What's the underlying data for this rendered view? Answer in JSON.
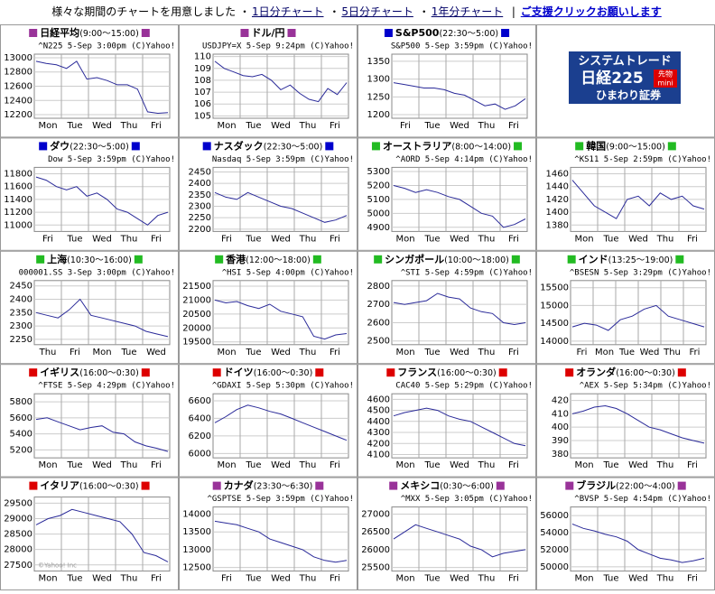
{
  "header": {
    "intro": "様々な期間のチャートを用意しました",
    "links": [
      "1日分チャート",
      "5日分チャート",
      "1年分チャート"
    ],
    "bullet": "・",
    "separator": "|",
    "support": "ご支援クリックお願いします"
  },
  "ad": {
    "title": "システムトレード",
    "product": "日経225",
    "badge": "先物",
    "badge2": "mini",
    "broker": "ひまわり証券"
  },
  "charts": [
    {
      "title": "日経平均",
      "hours": "(9:00〜15:00)",
      "color": "#993399",
      "caption": "^N225 5-Sep 3:00pm (C)Yahoo!",
      "ylim": [
        12150,
        13050
      ],
      "yticks": [
        12200,
        12400,
        12600,
        12800,
        13000
      ],
      "days": [
        "Mon",
        "Tue",
        "Wed",
        "Thu",
        "Fri"
      ],
      "values": [
        12950,
        12920,
        12900,
        12850,
        12950,
        12700,
        12720,
        12680,
        12620,
        12620,
        12560,
        12240,
        12220,
        12230
      ]
    },
    {
      "title": "ドル/円",
      "color": "#993399",
      "caption": "USDJPY=X 5-Sep 9:24pm (C)Yahoo!",
      "ylim": [
        104.8,
        110.2
      ],
      "yticks": [
        105,
        106,
        107,
        108,
        109,
        110
      ],
      "days": [
        "Mon",
        "Tue",
        "Wed",
        "Thu",
        "Fri"
      ],
      "values": [
        109.6,
        109,
        108.7,
        108.4,
        108.3,
        108.5,
        108,
        107.2,
        107.6,
        106.9,
        106.4,
        106.2,
        107.3,
        106.8,
        107.8
      ]
    },
    {
      "title": "S&P500",
      "hours": "(22:30〜5:00)",
      "color": "#0000cc",
      "caption": "S&P500 5-Sep 3:59pm (C)Yahoo!",
      "ylim": [
        1190,
        1370
      ],
      "yticks": [
        1200,
        1250,
        1300,
        1350
      ],
      "days": [
        "Fri",
        "Tue",
        "Wed",
        "Thu",
        "Fri"
      ],
      "values": [
        1290,
        1285,
        1280,
        1275,
        1275,
        1270,
        1260,
        1255,
        1240,
        1225,
        1230,
        1215,
        1225,
        1245
      ]
    },
    {
      "title": "ダウ",
      "hours": "(22:30〜5:00)",
      "color": "#0000cc",
      "caption": "Dow 5-Sep 3:59pm (C)Yahoo!",
      "ylim": [
        10900,
        11900
      ],
      "yticks": [
        11000,
        11200,
        11400,
        11600,
        11800
      ],
      "days": [
        "Fri",
        "Tue",
        "Wed",
        "Thu",
        "Fri"
      ],
      "values": [
        11750,
        11700,
        11600,
        11550,
        11600,
        11450,
        11500,
        11400,
        11250,
        11200,
        11100,
        11000,
        11150,
        11200
      ]
    },
    {
      "title": "ナスダック",
      "hours": "(22:30〜5:00)",
      "color": "#0000cc",
      "caption": "Nasdaq 5-Sep 3:59pm (C)Yahoo!",
      "ylim": [
        2190,
        2470
      ],
      "yticks": [
        2200,
        2250,
        2300,
        2350,
        2400,
        2450
      ],
      "days": [
        "Fri",
        "Tue",
        "Wed",
        "Thu",
        "Fri"
      ],
      "values": [
        2360,
        2340,
        2330,
        2360,
        2340,
        2320,
        2300,
        2290,
        2270,
        2250,
        2230,
        2240,
        2260
      ]
    },
    {
      "title": "オーストラリア",
      "hours": "(8:00〜14:00)",
      "color": "#22bb22",
      "caption": "^AORD 5-Sep 4:14pm (C)Yahoo!",
      "ylim": [
        4870,
        5330
      ],
      "yticks": [
        4900,
        5000,
        5100,
        5200,
        5300
      ],
      "days": [
        "Mon",
        "Tue",
        "Wed",
        "Thu",
        "Fri"
      ],
      "values": [
        5200,
        5180,
        5150,
        5170,
        5150,
        5120,
        5100,
        5050,
        5000,
        4980,
        4900,
        4920,
        4960
      ]
    },
    {
      "title": "韓国",
      "hours": "(9:00〜15:00)",
      "color": "#22bb22",
      "caption": "^KS11 5-Sep 2:59pm (C)Yahoo!",
      "ylim": [
        1370,
        1470
      ],
      "yticks": [
        1380,
        1400,
        1420,
        1440,
        1460
      ],
      "days": [
        "Mon",
        "Tue",
        "Wed",
        "Thu",
        "Fri"
      ],
      "values": [
        1450,
        1430,
        1410,
        1400,
        1390,
        1420,
        1425,
        1410,
        1430,
        1420,
        1425,
        1410,
        1405
      ]
    },
    {
      "title": "上海",
      "hours": "(10:30〜16:00)",
      "color": "#22bb22",
      "caption": "000001.SS 3-Sep 3:00pm (C)Yahoo!",
      "ylim": [
        2230,
        2470
      ],
      "yticks": [
        2250,
        2300,
        2350,
        2400,
        2450
      ],
      "days": [
        "Thu",
        "Fri",
        "Mon",
        "Tue",
        "Wed"
      ],
      "values": [
        2350,
        2340,
        2330,
        2360,
        2400,
        2340,
        2330,
        2320,
        2310,
        2300,
        2280,
        2270,
        2260
      ]
    },
    {
      "title": "香港",
      "hours": "(12:00〜18:00)",
      "color": "#22bb22",
      "caption": "^HSI 5-Sep 4:00pm (C)Yahoo!",
      "ylim": [
        19400,
        21700
      ],
      "yticks": [
        19500,
        20000,
        20500,
        21000,
        21500
      ],
      "days": [
        "Mon",
        "Tue",
        "Wed",
        "Thu",
        "Fri"
      ],
      "values": [
        21000,
        20900,
        20950,
        20800,
        20700,
        20850,
        20600,
        20500,
        20400,
        19700,
        19600,
        19750,
        19800
      ]
    },
    {
      "title": "シンガポール",
      "hours": "(10:00〜18:00)",
      "color": "#22bb22",
      "caption": "^STI 5-Sep 4:59pm (C)Yahoo!",
      "ylim": [
        2480,
        2830
      ],
      "yticks": [
        2500,
        2600,
        2700,
        2800
      ],
      "days": [
        "Mon",
        "Tue",
        "Wed",
        "Thu",
        "Fri"
      ],
      "values": [
        2710,
        2700,
        2710,
        2720,
        2760,
        2740,
        2730,
        2680,
        2660,
        2650,
        2600,
        2590,
        2600
      ]
    },
    {
      "title": "インド",
      "hours": "(13:25〜19:00)",
      "color": "#22bb22",
      "caption": "^BSESN 5-Sep 3:29pm (C)Yahoo!",
      "ylim": [
        13900,
        15700
      ],
      "yticks": [
        14000,
        14500,
        15000,
        15500
      ],
      "days": [
        "Fri",
        "Mon",
        "Tue",
        "Wed",
        "Thu",
        "Fri"
      ],
      "values": [
        14400,
        14500,
        14450,
        14300,
        14600,
        14700,
        14900,
        15000,
        14700,
        14600,
        14500,
        14400
      ]
    },
    {
      "title": "イギリス",
      "hours": "(16:00〜0:30)",
      "color": "#dd0000",
      "caption": "^FTSE 5-Sep 4:29pm (C)Yahoo!",
      "ylim": [
        5100,
        5900
      ],
      "yticks": [
        5200,
        5400,
        5600,
        5800
      ],
      "days": [
        "Mon",
        "Tue",
        "Wed",
        "Thu",
        "Fri"
      ],
      "values": [
        5580,
        5600,
        5550,
        5500,
        5450,
        5480,
        5500,
        5420,
        5400,
        5300,
        5250,
        5220,
        5180
      ]
    },
    {
      "title": "ドイツ",
      "hours": "(16:00〜0:30)",
      "color": "#dd0000",
      "caption": "^GDAXI 5-Sep 5:30pm (C)Yahoo!",
      "ylim": [
        5950,
        6680
      ],
      "yticks": [
        6000,
        6200,
        6400,
        6600
      ],
      "days": [
        "Mon",
        "Tue",
        "Wed",
        "Thu",
        "Fri"
      ],
      "values": [
        6350,
        6420,
        6500,
        6550,
        6520,
        6480,
        6450,
        6400,
        6350,
        6300,
        6250,
        6200,
        6150
      ]
    },
    {
      "title": "フランス",
      "hours": "(16:00〜0:30)",
      "color": "#dd0000",
      "caption": "CAC40 5-Sep 5:29pm (C)Yahoo!",
      "ylim": [
        4070,
        4650
      ],
      "yticks": [
        4100,
        4200,
        4300,
        4400,
        4500,
        4600
      ],
      "days": [
        "Mon",
        "Tue",
        "Wed",
        "Thu",
        "Fri"
      ],
      "values": [
        4450,
        4480,
        4500,
        4520,
        4500,
        4450,
        4420,
        4400,
        4350,
        4300,
        4250,
        4200,
        4180
      ]
    },
    {
      "title": "オランダ",
      "hours": "(16:00〜0:30)",
      "color": "#dd0000",
      "caption": "^AEX 5-Sep 5:34pm (C)Yahoo!",
      "ylim": [
        377,
        425
      ],
      "yticks": [
        380,
        390,
        400,
        410,
        420
      ],
      "days": [
        "Mon",
        "Tue",
        "Wed",
        "Thu",
        "Fri"
      ],
      "values": [
        410,
        412,
        415,
        416,
        414,
        410,
        405,
        400,
        398,
        395,
        392,
        390,
        388
      ]
    },
    {
      "title": "イタリア",
      "hours": "(16:00〜0:30)",
      "color": "#dd0000",
      "watermark": "©Yahoo! Inc",
      "ylim": [
        27300,
        29700
      ],
      "yticks": [
        27500,
        28000,
        28500,
        29000,
        29500
      ],
      "days": [
        "Mon",
        "Tue",
        "Wed",
        "Thu",
        "Fri"
      ],
      "values": [
        28800,
        29000,
        29100,
        29300,
        29200,
        29100,
        29000,
        28900,
        28500,
        27900,
        27800,
        27600
      ]
    },
    {
      "title": "カナダ",
      "hours": "(23:30〜6:30)",
      "color": "#993399",
      "caption": "^GSPTSE 5-Sep 3:59pm (C)Yahoo!",
      "ylim": [
        12400,
        14200
      ],
      "yticks": [
        12500,
        13000,
        13500,
        14000
      ],
      "days": [
        "Fri",
        "Tue",
        "Wed",
        "Thu",
        "Fri"
      ],
      "values": [
        13800,
        13750,
        13700,
        13600,
        13500,
        13300,
        13200,
        13100,
        13000,
        12800,
        12700,
        12650,
        12700
      ]
    },
    {
      "title": "メキシコ",
      "hours": "(0:30〜6:00)",
      "color": "#993399",
      "caption": "^MXX 5-Sep 3:05pm (C)Yahoo!",
      "ylim": [
        25400,
        27200
      ],
      "yticks": [
        25500,
        26000,
        26500,
        27000
      ],
      "days": [
        "Mon",
        "Tue",
        "Wed",
        "Thu",
        "Fri"
      ],
      "values": [
        26300,
        26500,
        26700,
        26600,
        26500,
        26400,
        26300,
        26100,
        26000,
        25800,
        25900,
        25950,
        26000
      ]
    },
    {
      "title": "ブラジル",
      "hours": "(22:00〜4:00)",
      "color": "#993399",
      "caption": "^BVSP 5-Sep 4:54pm (C)Yahoo!",
      "ylim": [
        49500,
        57000
      ],
      "yticks": [
        50000,
        52000,
        54000,
        56000
      ],
      "days": [
        "Mon",
        "Tue",
        "Wed",
        "Thu",
        "Fri"
      ],
      "values": [
        55000,
        54500,
        54200,
        53800,
        53500,
        53000,
        52000,
        51500,
        51000,
        50800,
        50500,
        50700,
        51000
      ]
    }
  ]
}
